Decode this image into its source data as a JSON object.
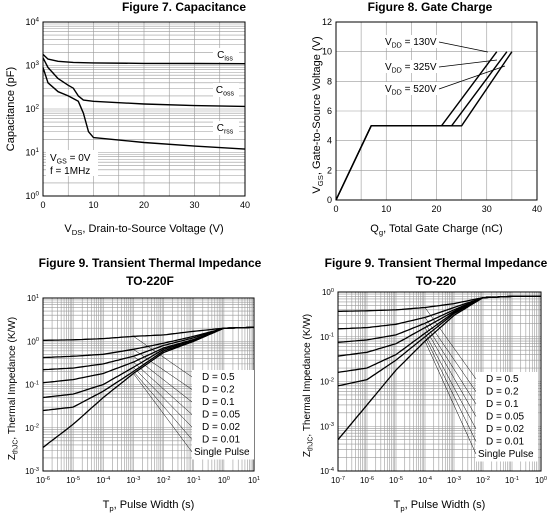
{
  "chart_data": [
    {
      "type": "line",
      "title": "Figure 7. Capacitance",
      "xlabel": "V_DS, Drain-to-Source Voltage (V)",
      "ylabel": "Capacitance (pF)",
      "xscale": "linear",
      "yscale": "log",
      "xlim": [
        0,
        40
      ],
      "ylim": [
        1,
        10000
      ],
      "xticks": [
        "0",
        "10",
        "20",
        "30",
        "40"
      ],
      "yticks": [
        "10^0",
        "10^1",
        "10^2",
        "10^3",
        "10^4"
      ],
      "grid": true,
      "annotation": [
        "V_GS = 0V",
        "f = 1MHz"
      ],
      "series": [
        {
          "name": "C_iss",
          "x": [
            0,
            1,
            3,
            6,
            10,
            20,
            30,
            40
          ],
          "y": [
            1800,
            1400,
            1250,
            1180,
            1150,
            1120,
            1110,
            1100
          ]
        },
        {
          "name": "C_oss",
          "x": [
            0,
            1,
            3,
            5,
            6,
            7,
            8,
            10,
            20,
            30,
            40
          ],
          "y": [
            1500,
            900,
            500,
            350,
            300,
            200,
            160,
            150,
            130,
            120,
            115
          ]
        },
        {
          "name": "C_rss",
          "x": [
            0,
            1,
            3,
            5,
            7,
            8,
            9,
            10,
            20,
            30,
            40
          ],
          "y": [
            900,
            400,
            250,
            200,
            150,
            80,
            30,
            22,
            17,
            14,
            12
          ]
        }
      ]
    },
    {
      "type": "line",
      "title": "Figure 8. Gate Charge",
      "xlabel": "Q_g, Total Gate Charge (nC)",
      "ylabel": "V_GS, Gate-to-Source Voltage (V)",
      "xlim": [
        0,
        40
      ],
      "ylim": [
        0,
        12
      ],
      "xticks": [
        "0",
        "10",
        "20",
        "30",
        "40"
      ],
      "yticks": [
        "0",
        "2",
        "4",
        "6",
        "8",
        "10",
        "12"
      ],
      "grid": true,
      "series": [
        {
          "name": "V_DD = 130V",
          "x": [
            0,
            7,
            21,
            32
          ],
          "y": [
            0,
            5,
            5,
            10
          ]
        },
        {
          "name": "V_DD = 325V",
          "x": [
            0,
            7,
            23,
            34
          ],
          "y": [
            0,
            5,
            5,
            10
          ]
        },
        {
          "name": "V_DD = 520V",
          "x": [
            0,
            7,
            25,
            35
          ],
          "y": [
            0,
            5,
            5,
            10
          ]
        }
      ]
    },
    {
      "type": "line",
      "title": "Figure 9. Transient Thermal Impedance",
      "subtitle": "TO-220F",
      "xlabel": "T_p, Pulse Width (s)",
      "ylabel": "Z_thJC, Thermal Impedance (K/W)",
      "xscale": "log",
      "yscale": "log",
      "xlim": [
        1e-06,
        10
      ],
      "ylim": [
        0.001,
        10
      ],
      "xticks": [
        "10^-6",
        "10^-5",
        "10^-4",
        "10^-3",
        "10^-2",
        "10^-1",
        "10^0",
        "10^1"
      ],
      "yticks": [
        "10^-3",
        "10^-2",
        "10^-1",
        "10^0",
        "10^1"
      ],
      "grid": true,
      "series": [
        {
          "name": "D = 0.5",
          "x": [
            1e-06,
            1e-05,
            0.0001,
            0.001,
            0.01,
            0.1,
            1,
            10
          ],
          "y": [
            1.05,
            1.08,
            1.15,
            1.3,
            1.4,
            1.7,
            2.0,
            2.1
          ]
        },
        {
          "name": "D = 0.2",
          "x": [
            1e-06,
            1e-05,
            0.0001,
            0.001,
            0.01,
            0.1,
            1,
            10
          ],
          "y": [
            0.42,
            0.45,
            0.5,
            0.65,
            0.9,
            1.3,
            2.0,
            2.1
          ]
        },
        {
          "name": "D = 0.1",
          "x": [
            1e-06,
            1e-05,
            0.0001,
            0.001,
            0.01,
            0.1,
            1,
            10
          ],
          "y": [
            0.22,
            0.24,
            0.3,
            0.45,
            0.8,
            1.2,
            2.0,
            2.1
          ]
        },
        {
          "name": "D = 0.05",
          "x": [
            1e-06,
            1e-05,
            0.0001,
            0.001,
            0.01,
            0.1,
            1,
            10
          ],
          "y": [
            0.11,
            0.13,
            0.18,
            0.33,
            0.7,
            1.1,
            2.0,
            2.1
          ]
        },
        {
          "name": "D = 0.02",
          "x": [
            1e-06,
            1e-05,
            0.0001,
            0.001,
            0.01,
            0.1,
            1,
            10
          ],
          "y": [
            0.05,
            0.06,
            0.1,
            0.25,
            0.65,
            1.05,
            2.0,
            2.1
          ]
        },
        {
          "name": "D = 0.01",
          "x": [
            1e-06,
            1e-05,
            0.0001,
            0.001,
            0.01,
            0.1,
            1,
            10
          ],
          "y": [
            0.025,
            0.03,
            0.07,
            0.2,
            0.6,
            1.0,
            2.0,
            2.1
          ]
        },
        {
          "name": "Single Pulse",
          "x": [
            1e-06,
            1e-05,
            0.0001,
            0.001,
            0.01,
            0.1,
            1,
            10
          ],
          "y": [
            0.0035,
            0.012,
            0.05,
            0.18,
            0.55,
            1.0,
            2.0,
            2.1
          ]
        }
      ]
    },
    {
      "type": "line",
      "title": "Figure 9. Transient Thermal Impedance",
      "subtitle": "TO-220",
      "xlabel": "T_p, Pulse Width (s)",
      "ylabel": "Z_thJC, Thermal Impedance (K/W)",
      "xscale": "log",
      "yscale": "log",
      "xlim": [
        1e-07,
        1
      ],
      "ylim": [
        0.0001,
        1
      ],
      "xticks": [
        "10^-7",
        "10^-6",
        "10^-5",
        "10^-4",
        "10^-3",
        "10^-2",
        "10^-1",
        "10^0"
      ],
      "yticks": [
        "10^-4",
        "10^-3",
        "10^-2",
        "10^-1",
        "10^0"
      ],
      "grid": true,
      "series": [
        {
          "name": "D = 0.5",
          "x": [
            1e-07,
            1e-06,
            1e-05,
            0.0001,
            0.001,
            0.01,
            0.1,
            1
          ],
          "y": [
            0.37,
            0.38,
            0.4,
            0.45,
            0.55,
            0.75,
            0.8,
            0.8
          ]
        },
        {
          "name": "D = 0.2",
          "x": [
            1e-07,
            1e-06,
            1e-05,
            0.0001,
            0.001,
            0.01,
            0.1,
            1
          ],
          "y": [
            0.15,
            0.16,
            0.19,
            0.27,
            0.45,
            0.75,
            0.8,
            0.8
          ]
        },
        {
          "name": "D = 0.1",
          "x": [
            1e-07,
            1e-06,
            1e-05,
            0.0001,
            0.001,
            0.01,
            0.1,
            1
          ],
          "y": [
            0.075,
            0.085,
            0.11,
            0.2,
            0.4,
            0.75,
            0.8,
            0.8
          ]
        },
        {
          "name": "D = 0.05",
          "x": [
            1e-07,
            1e-06,
            1e-05,
            0.0001,
            0.001,
            0.01,
            0.1,
            1
          ],
          "y": [
            0.037,
            0.045,
            0.07,
            0.16,
            0.37,
            0.75,
            0.8,
            0.8
          ]
        },
        {
          "name": "D = 0.02",
          "x": [
            1e-07,
            1e-06,
            1e-05,
            0.0001,
            0.001,
            0.01,
            0.1,
            1
          ],
          "y": [
            0.016,
            0.02,
            0.04,
            0.12,
            0.35,
            0.75,
            0.8,
            0.8
          ]
        },
        {
          "name": "D = 0.01",
          "x": [
            1e-07,
            1e-06,
            1e-05,
            0.0001,
            0.001,
            0.01,
            0.1,
            1
          ],
          "y": [
            0.008,
            0.011,
            0.03,
            0.1,
            0.33,
            0.75,
            0.8,
            0.8
          ]
        },
        {
          "name": "Single Pulse",
          "x": [
            1e-07,
            1e-06,
            1e-05,
            0.0001,
            0.001,
            0.01,
            0.1,
            1
          ],
          "y": [
            0.0005,
            0.003,
            0.018,
            0.08,
            0.3,
            0.75,
            0.8,
            0.8
          ]
        }
      ]
    }
  ],
  "colors": {
    "line": "#000000",
    "grid": "#9a9a9a",
    "background": "#ffffff"
  }
}
